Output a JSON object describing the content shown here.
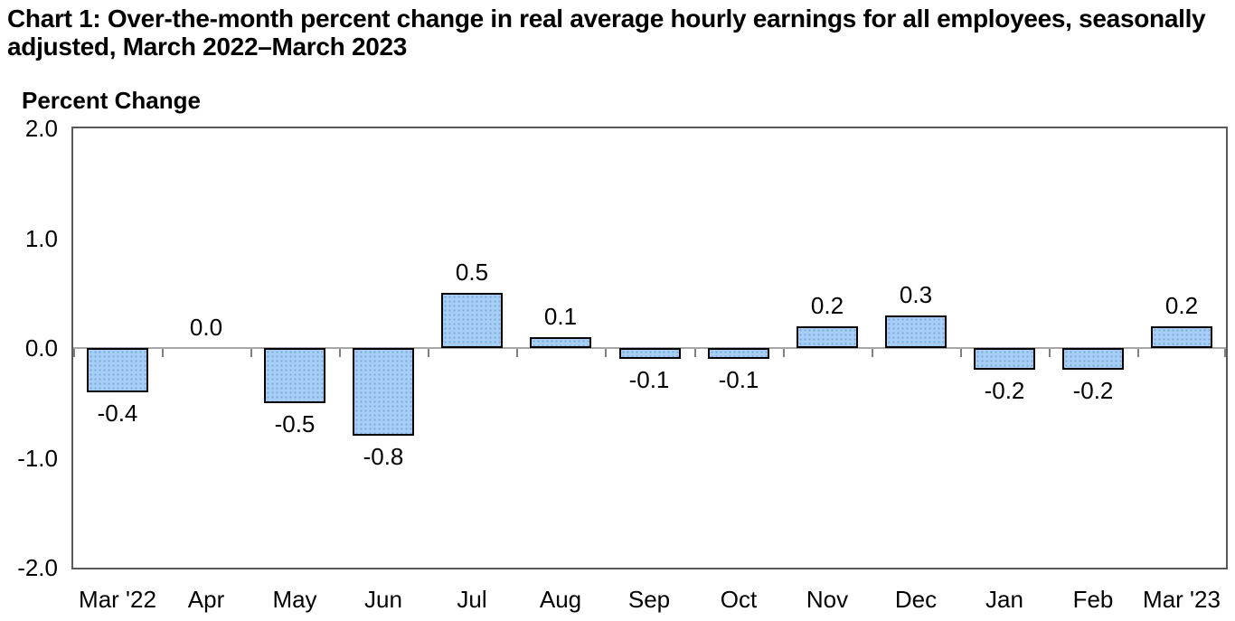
{
  "chart_data": {
    "type": "bar",
    "title": "Chart 1: Over-the-month percent change in real average hourly earnings for all employees, seasonally adjusted, March 2022–March 2023",
    "title_lines": [
      "Chart 1: Over-the-month percent change in real average hourly earnings for all employees, seasonally",
      "adjusted, March 2022–March 2023"
    ],
    "axis_title": "Percent Change",
    "categories": [
      "Mar '22",
      "Apr",
      "May",
      "Jun",
      "Jul",
      "Aug",
      "Sep",
      "Oct",
      "Nov",
      "Dec",
      "Jan",
      "Feb",
      "Mar '23"
    ],
    "values": [
      -0.4,
      0.0,
      -0.5,
      -0.8,
      0.5,
      0.1,
      -0.1,
      -0.1,
      0.2,
      0.3,
      -0.2,
      -0.2,
      0.2
    ],
    "data_labels": [
      "-0.4",
      "0.0",
      "-0.5",
      "-0.8",
      "0.5",
      "0.1",
      "-0.1",
      "-0.1",
      "0.2",
      "0.3",
      "-0.2",
      "-0.2",
      "0.2"
    ],
    "y_tick_labels": [
      "2.0",
      "1.0",
      "0.0",
      "-1.0",
      "-2.0"
    ],
    "y_tick_values": [
      2.0,
      1.0,
      0.0,
      -1.0,
      -2.0
    ],
    "ylim": [
      -2.0,
      2.0
    ],
    "grid": false,
    "legend": "none",
    "style": {
      "bar_fill": "#a6cef6",
      "bar_pattern_dot": "#7fa9d9",
      "bar_border": "#000000",
      "zero_line_color": "#a6a6a6",
      "plot_border_color": "#595959",
      "tick_color": "#808080",
      "text_color": "#000000",
      "background": "#ffffff"
    }
  }
}
